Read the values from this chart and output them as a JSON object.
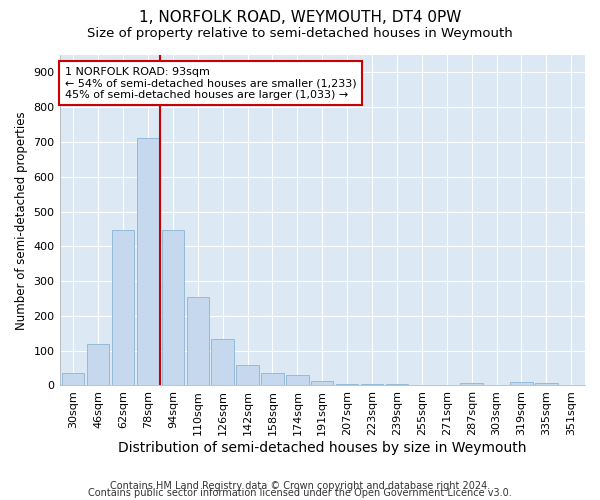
{
  "title": "1, NORFOLK ROAD, WEYMOUTH, DT4 0PW",
  "subtitle": "Size of property relative to semi-detached houses in Weymouth",
  "xlabel": "Distribution of semi-detached houses by size in Weymouth",
  "ylabel": "Number of semi-detached properties",
  "categories": [
    "30sqm",
    "46sqm",
    "62sqm",
    "78sqm",
    "94sqm",
    "110sqm",
    "126sqm",
    "142sqm",
    "158sqm",
    "174sqm",
    "191sqm",
    "207sqm",
    "223sqm",
    "239sqm",
    "255sqm",
    "271sqm",
    "287sqm",
    "303sqm",
    "319sqm",
    "335sqm",
    "351sqm"
  ],
  "values": [
    35,
    118,
    448,
    710,
    448,
    255,
    133,
    58,
    37,
    30,
    12,
    5,
    3,
    3,
    2,
    0,
    8,
    0,
    10,
    7,
    0
  ],
  "bar_color": "#c5d8ed",
  "bar_edge_color": "#8ab4d4",
  "marker_index": 3.5,
  "marker_color": "#cc0000",
  "annotation_text": "1 NORFOLK ROAD: 93sqm\n← 54% of semi-detached houses are smaller (1,233)\n45% of semi-detached houses are larger (1,033) →",
  "annotation_box_color": "#ffffff",
  "annotation_box_edge": "#cc0000",
  "ylim": [
    0,
    950
  ],
  "yticks": [
    0,
    100,
    200,
    300,
    400,
    500,
    600,
    700,
    800,
    900
  ],
  "footer1": "Contains HM Land Registry data © Crown copyright and database right 2024.",
  "footer2": "Contains public sector information licensed under the Open Government Licence v3.0.",
  "plot_bg_color": "#dce9f5",
  "title_fontsize": 11,
  "subtitle_fontsize": 9.5,
  "ylabel_fontsize": 8.5,
  "xlabel_fontsize": 10,
  "tick_fontsize": 8,
  "annotation_fontsize": 8,
  "footer_fontsize": 7
}
